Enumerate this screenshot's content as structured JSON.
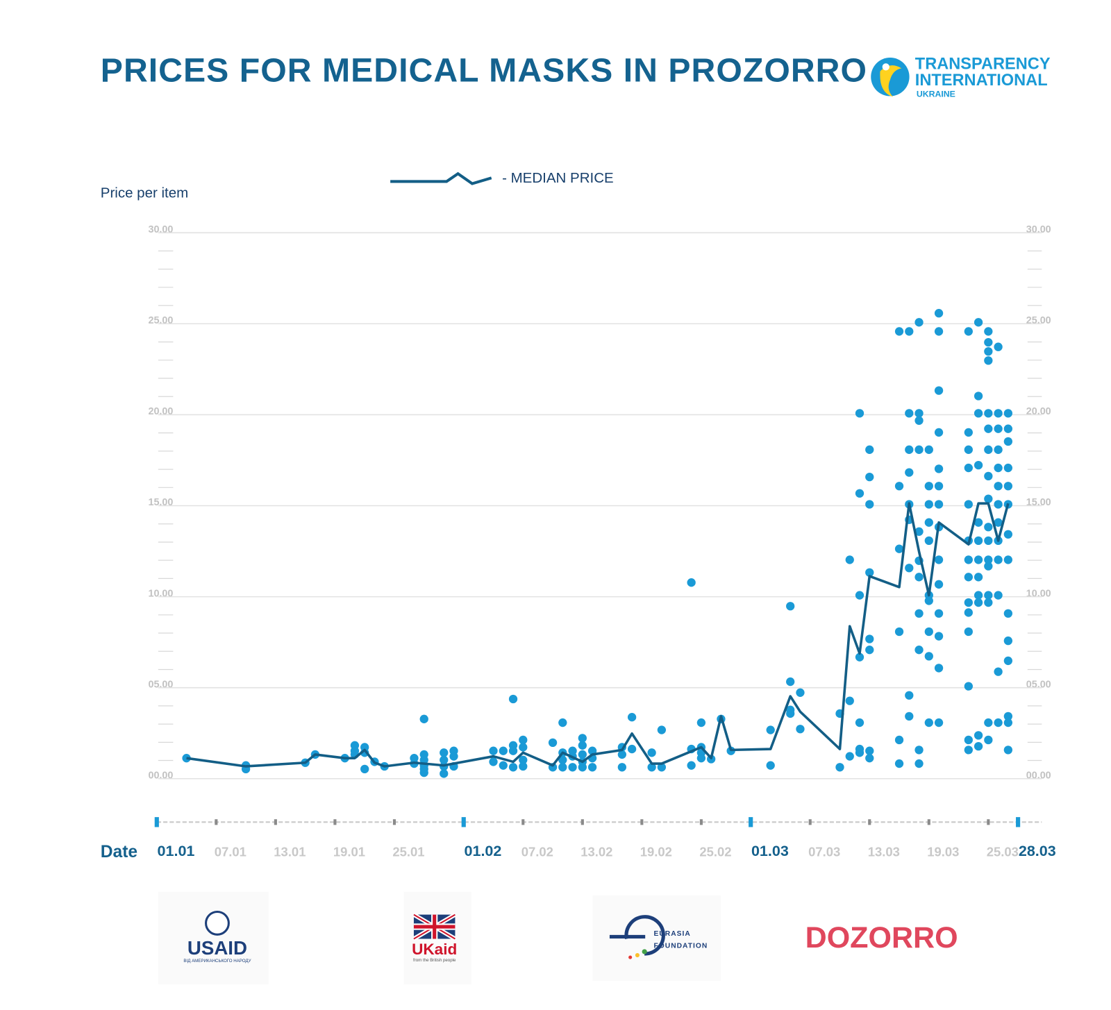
{
  "chart_data": {
    "type": "scatter",
    "title": "PRICES FOR MEDICAL MASKS IN PROZORRO",
    "y_label": "Price per item",
    "x_label": "Date",
    "xlim": [
      0,
      89.4
    ],
    "ylim": [
      0,
      30
    ],
    "yticks": [
      {
        "value": 0,
        "label": "00.00"
      },
      {
        "value": 5,
        "label": "05.00"
      },
      {
        "value": 10,
        "label": "10.00"
      },
      {
        "value": 15,
        "label": "15.00"
      },
      {
        "value": 20,
        "label": "20.00"
      },
      {
        "value": 25,
        "label": "25.00"
      },
      {
        "value": 30,
        "label": "30.00"
      }
    ],
    "xticks": [
      {
        "value": 6,
        "label": "07.01"
      },
      {
        "value": 12,
        "label": "13.01"
      },
      {
        "value": 18,
        "label": "19.01"
      },
      {
        "value": 24,
        "label": "25.01"
      },
      {
        "value": 37,
        "label": "07.02"
      },
      {
        "value": 43,
        "label": "13.02"
      },
      {
        "value": 49,
        "label": "19.02"
      },
      {
        "value": 55,
        "label": "25.02"
      },
      {
        "value": 66,
        "label": "07.03"
      },
      {
        "value": 72,
        "label": "13.03"
      },
      {
        "value": 78,
        "label": "19.03"
      },
      {
        "value": 84,
        "label": "25.03"
      }
    ],
    "major_xticks": [
      {
        "value": 0,
        "label": "01.01"
      },
      {
        "value": 31,
        "label": "01.02"
      },
      {
        "value": 60,
        "label": "01.03"
      },
      {
        "value": 87,
        "label": "28.03"
      }
    ],
    "grid": true,
    "series": [
      {
        "type": "scatter",
        "color": "#1a9ad6",
        "groups": [
          {
            "x": 3,
            "values": [
              1.05
            ]
          },
          {
            "x": 9,
            "values": [
              0.65,
              0.45
            ]
          },
          {
            "x": 15,
            "values": [
              0.8
            ]
          },
          {
            "x": 16,
            "values": [
              1.25
            ]
          },
          {
            "x": 19,
            "values": [
              1.05
            ]
          },
          {
            "x": 20,
            "values": [
              1.75,
              1.45,
              1.25
            ]
          },
          {
            "x": 21,
            "values": [
              1.65,
              1.35,
              0.45
            ]
          },
          {
            "x": 22,
            "values": [
              0.85
            ]
          },
          {
            "x": 23,
            "values": [
              0.6
            ]
          },
          {
            "x": 26,
            "values": [
              1.05,
              0.75
            ]
          },
          {
            "x": 27,
            "values": [
              3.2,
              1.25,
              0.95,
              0.65,
              0.45,
              0.25
            ]
          },
          {
            "x": 29,
            "values": [
              1.35,
              0.95,
              0.6,
              0.2
            ]
          },
          {
            "x": 30,
            "values": [
              1.45,
              1.15,
              0.6
            ]
          },
          {
            "x": 34,
            "values": [
              1.45,
              0.85
            ]
          },
          {
            "x": 35,
            "values": [
              1.45,
              0.65
            ]
          },
          {
            "x": 36,
            "values": [
              4.3,
              1.75,
              1.45,
              0.55
            ]
          },
          {
            "x": 37,
            "values": [
              2.05,
              1.65,
              0.95,
              0.6
            ]
          },
          {
            "x": 40,
            "values": [
              1.9,
              0.55
            ]
          },
          {
            "x": 41,
            "values": [
              3.0,
              1.35,
              0.95,
              0.55
            ]
          },
          {
            "x": 42,
            "values": [
              1.45,
              1.15,
              0.55
            ]
          },
          {
            "x": 43,
            "values": [
              2.15,
              1.75,
              1.25,
              0.85,
              0.55
            ]
          },
          {
            "x": 44,
            "values": [
              1.45,
              1.05,
              0.55
            ]
          },
          {
            "x": 47,
            "values": [
              1.65,
              1.25,
              0.55
            ]
          },
          {
            "x": 48,
            "values": [
              3.3,
              1.55
            ]
          },
          {
            "x": 50,
            "values": [
              1.35,
              0.55
            ]
          },
          {
            "x": 51,
            "values": [
              2.6,
              0.55
            ]
          },
          {
            "x": 54,
            "values": [
              10.7,
              1.55,
              0.65
            ]
          },
          {
            "x": 55,
            "values": [
              3.0,
              1.65,
              1.35,
              1.05
            ]
          },
          {
            "x": 56,
            "values": [
              1.0
            ]
          },
          {
            "x": 57,
            "values": [
              3.2
            ]
          },
          {
            "x": 58,
            "values": [
              1.45
            ]
          },
          {
            "x": 62,
            "values": [
              2.6,
              0.65
            ]
          },
          {
            "x": 64,
            "values": [
              9.4,
              5.25,
              3.7,
              3.5
            ]
          },
          {
            "x": 65,
            "values": [
              4.65,
              2.65
            ]
          },
          {
            "x": 69,
            "values": [
              3.5,
              0.55
            ]
          },
          {
            "x": 70,
            "values": [
              11.95,
              4.2,
              1.15
            ]
          },
          {
            "x": 71,
            "values": [
              20,
              15.6,
              10,
              6.6,
              3.0,
              1.55,
              1.35
            ]
          },
          {
            "x": 72,
            "values": [
              18,
              16.5,
              15,
              11.25,
              7.6,
              7.0,
              1.45,
              1.05
            ]
          },
          {
            "x": 75,
            "values": [
              24.5,
              16,
              12.55,
              8.0,
              2.05,
              0.75
            ]
          },
          {
            "x": 76,
            "values": [
              24.5,
              20,
              18,
              16.75,
              15,
              14.15,
              11.5,
              4.5,
              3.35
            ]
          },
          {
            "x": 77,
            "values": [
              25,
              20,
              19.6,
              18,
              13.5,
              11.9,
              11,
              9,
              7,
              1.5,
              0.75
            ]
          },
          {
            "x": 78,
            "values": [
              18,
              16,
              15,
              14,
              13,
              10,
              9.7,
              8,
              6.65,
              3.0
            ]
          },
          {
            "x": 79,
            "values": [
              25.5,
              24.5,
              21.25,
              18.95,
              16.95,
              16,
              15,
              13.75,
              11.95,
              10.6,
              9,
              7.75,
              6.0,
              3.0
            ]
          },
          {
            "x": 82,
            "values": [
              24.5,
              18.95,
              18,
              17,
              15,
              13,
              11.95,
              11,
              9.6,
              9.05,
              8,
              5,
              2.05,
              1.5
            ]
          },
          {
            "x": 83,
            "values": [
              25,
              20.95,
              20,
              17.15,
              14,
              13,
              11.95,
              11,
              10,
              9.6,
              2.3,
              1.7
            ]
          },
          {
            "x": 84,
            "values": [
              24.5,
              23.9,
              23.4,
              22.9,
              20,
              19.15,
              18,
              16.55,
              15.3,
              13.75,
              13,
              11.95,
              11.6,
              10,
              9.6,
              3.0,
              2.05
            ]
          },
          {
            "x": 85,
            "values": [
              23.65,
              20,
              19.15,
              18,
              17,
              16,
              15,
              14,
              13,
              11.95,
              10,
              5.8,
              3.0
            ]
          },
          {
            "x": 86,
            "values": [
              20,
              19.15,
              18.45,
              17,
              16,
              15,
              13.35,
              11.95,
              9,
              7.5,
              6.4,
              3.35,
              3.0,
              1.5
            ]
          }
        ]
      },
      {
        "type": "line",
        "name": "- MEDIAN PRICE",
        "color": "#135e86",
        "x": [
          3,
          9,
          15,
          16,
          19,
          20,
          21,
          22,
          23,
          26,
          29,
          34,
          36,
          37,
          40,
          41,
          43,
          44,
          47,
          48,
          50,
          51,
          55,
          56,
          57,
          58,
          62,
          64,
          65,
          69,
          70,
          71,
          72,
          75,
          76,
          77,
          78,
          79,
          82,
          83,
          84,
          85,
          86
        ],
        "values": [
          1.05,
          0.6,
          0.8,
          1.25,
          1.05,
          1.05,
          1.5,
          0.8,
          0.6,
          0.8,
          0.65,
          1.15,
          0.85,
          1.35,
          0.65,
          1.35,
          0.85,
          1.25,
          1.5,
          2.4,
          0.75,
          0.75,
          1.65,
          1.05,
          3.35,
          1.5,
          1.55,
          4.45,
          3.6,
          1.55,
          8.3,
          6.8,
          11.05,
          10.45,
          15.05,
          12.4,
          10,
          14,
          12.8,
          15.05,
          15.05,
          13,
          15.05
        ]
      }
    ]
  },
  "header": {
    "org_line1": "TRANSPARENCY",
    "org_line2": "INTERNATIONAL",
    "org_line3": "UKRAINE"
  },
  "footer": {
    "usaid": "USAID",
    "usaid_sub": "ВІД АМЕРИКАНСЬКОГО НАРОДУ",
    "ukaid": "UKaid",
    "ukaid_sub": "from the British people",
    "eurasia_line1": "EURASIA",
    "eurasia_line2": "FOUNDATION",
    "dozorro": "DOZORRO"
  }
}
